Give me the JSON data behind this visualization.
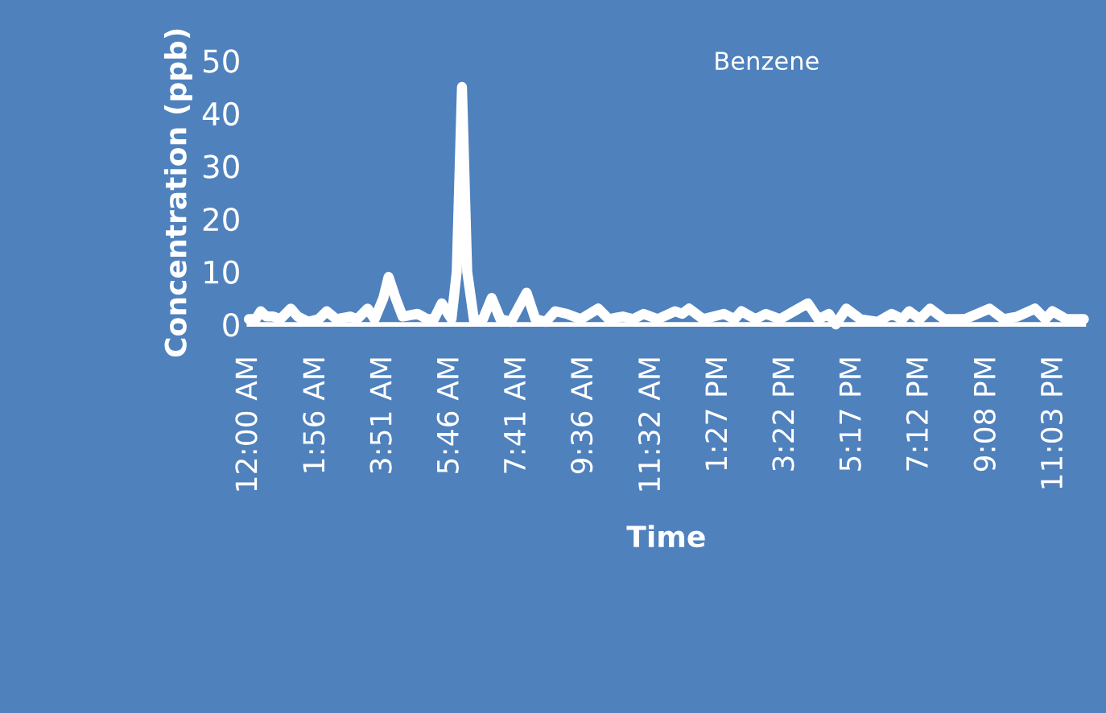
{
  "chart_data": {
    "type": "line",
    "xlabel": "Time",
    "ylabel": "Concentration (ppb)",
    "xlim": [
      0,
      23.9
    ],
    "ylim": [
      0,
      50
    ],
    "yticks": [
      0,
      10,
      20,
      30,
      40,
      50
    ],
    "xticks": [
      {
        "value": 0,
        "label": "12:00 AM"
      },
      {
        "value": 1.933,
        "label": "1:56 AM"
      },
      {
        "value": 3.85,
        "label": "3:51 AM"
      },
      {
        "value": 5.767,
        "label": "5:46 AM"
      },
      {
        "value": 7.683,
        "label": "7:41 AM"
      },
      {
        "value": 9.6,
        "label": "9:36 AM"
      },
      {
        "value": 11.533,
        "label": "11:32 AM"
      },
      {
        "value": 13.45,
        "label": "1:27 PM"
      },
      {
        "value": 15.367,
        "label": "3:22 PM"
      },
      {
        "value": 17.283,
        "label": "5:17 PM"
      },
      {
        "value": 19.2,
        "label": "7:12 PM"
      },
      {
        "value": 21.133,
        "label": "9:08 PM"
      },
      {
        "value": 23.05,
        "label": "11:03 PM"
      }
    ],
    "legend": "top",
    "grid": false,
    "marker": "none",
    "line_style": "solid",
    "series": [
      {
        "name": "Benzene",
        "color": "#ffffff",
        "x": [
          0,
          0.2,
          0.34,
          0.5,
          0.7,
          0.9,
          1.2,
          1.4,
          1.7,
          2.0,
          2.23,
          2.5,
          2.9,
          3.1,
          3.4,
          3.6,
          3.85,
          4.0,
          4.2,
          4.4,
          4.83,
          5.1,
          5.3,
          5.52,
          5.8,
          5.95,
          6.1,
          6.25,
          6.45,
          6.7,
          6.95,
          7.2,
          7.5,
          7.95,
          8.2,
          8.5,
          8.77,
          9.1,
          9.5,
          10.0,
          10.3,
          10.7,
          11.0,
          11.3,
          11.7,
          12.2,
          12.4,
          12.6,
          13.0,
          13.6,
          13.9,
          14.1,
          14.5,
          14.8,
          15.2,
          15.6,
          16.0,
          16.3,
          16.6,
          16.8,
          17.1,
          17.5,
          18.0,
          18.4,
          18.7,
          18.9,
          19.2,
          19.5,
          19.9,
          20.5,
          21.2,
          21.6,
          22.0,
          22.5,
          22.8,
          23.0,
          23.4,
          23.9
        ],
        "values": [
          1,
          1,
          2.5,
          1.5,
          1.5,
          1,
          3,
          1.5,
          0.5,
          1,
          2.5,
          1,
          1.5,
          1,
          3,
          1,
          5,
          9,
          5,
          1.5,
          2,
          1,
          1,
          4,
          1,
          10,
          45,
          10,
          0.5,
          1,
          5,
          1,
          0.5,
          6,
          1,
          0.5,
          2.5,
          2,
          1,
          3,
          1,
          1.5,
          1,
          2,
          1,
          2.5,
          2,
          3,
          1,
          2,
          1,
          2.5,
          1,
          2,
          1,
          2.5,
          4,
          1,
          2,
          0,
          3,
          1,
          0.5,
          2,
          1,
          2.5,
          1,
          3,
          1,
          1,
          3,
          1,
          1.5,
          3,
          1,
          2.5,
          1,
          1
        ]
      }
    ]
  }
}
